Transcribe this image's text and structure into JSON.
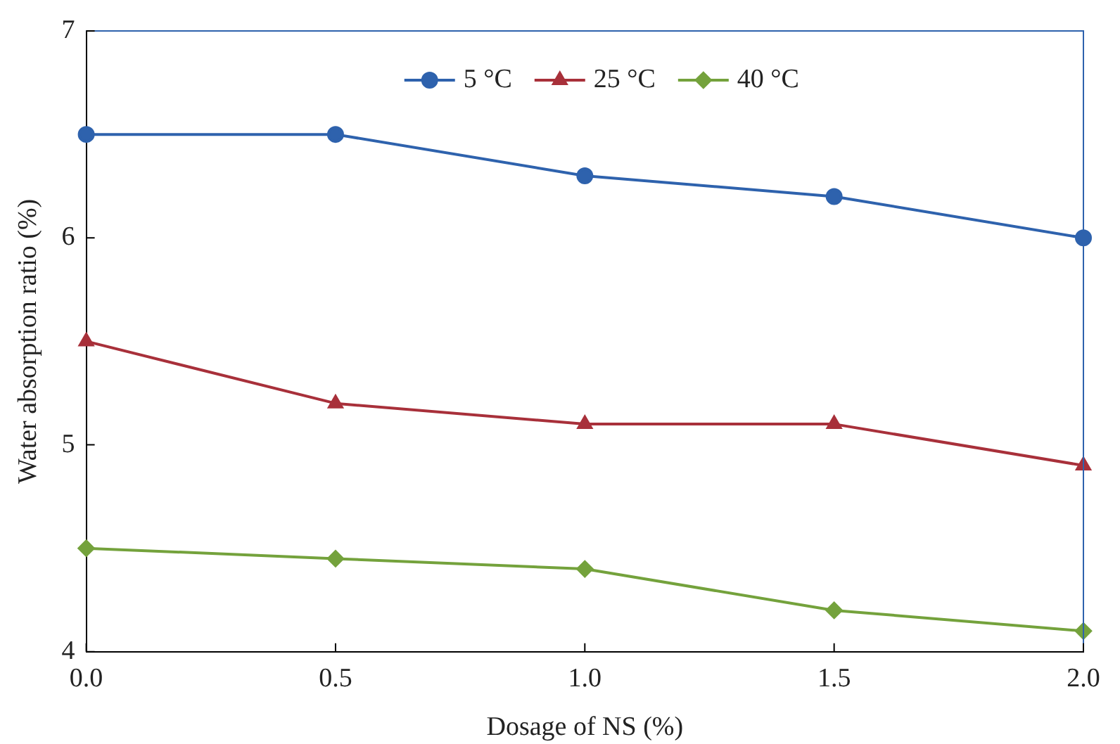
{
  "chart_data": {
    "type": "line",
    "xlabel": "Dosage of NS (%)",
    "ylabel": "Water absorption ratio (%)",
    "x": [
      0,
      0.5,
      1,
      1.5,
      2
    ],
    "xlim": [
      0,
      2
    ],
    "xticks": [
      {
        "value": 0,
        "label": "0.0"
      },
      {
        "value": 0.5,
        "label": "0.5"
      },
      {
        "value": 1,
        "label": "1.0"
      },
      {
        "value": 1.5,
        "label": "1.5"
      },
      {
        "value": 2,
        "label": "2.0"
      }
    ],
    "ylim": [
      4,
      7
    ],
    "yticks": [
      4,
      5,
      6,
      7
    ],
    "grid": false,
    "legend": "top",
    "line_style": "solid",
    "series": [
      {
        "name": "5 °C",
        "color": "#2e62ad",
        "marker": "circle",
        "values": [
          6.5,
          6.5,
          6.3,
          6.2,
          6.0
        ]
      },
      {
        "name": "25 °C",
        "color": "#a8303a",
        "marker": "triangle",
        "values": [
          5.5,
          5.2,
          5.1,
          5.1,
          4.9
        ]
      },
      {
        "name": "40 °C",
        "color": "#74a23c",
        "marker": "diamond",
        "values": [
          4.5,
          4.45,
          4.4,
          4.2,
          4.1
        ]
      }
    ]
  }
}
